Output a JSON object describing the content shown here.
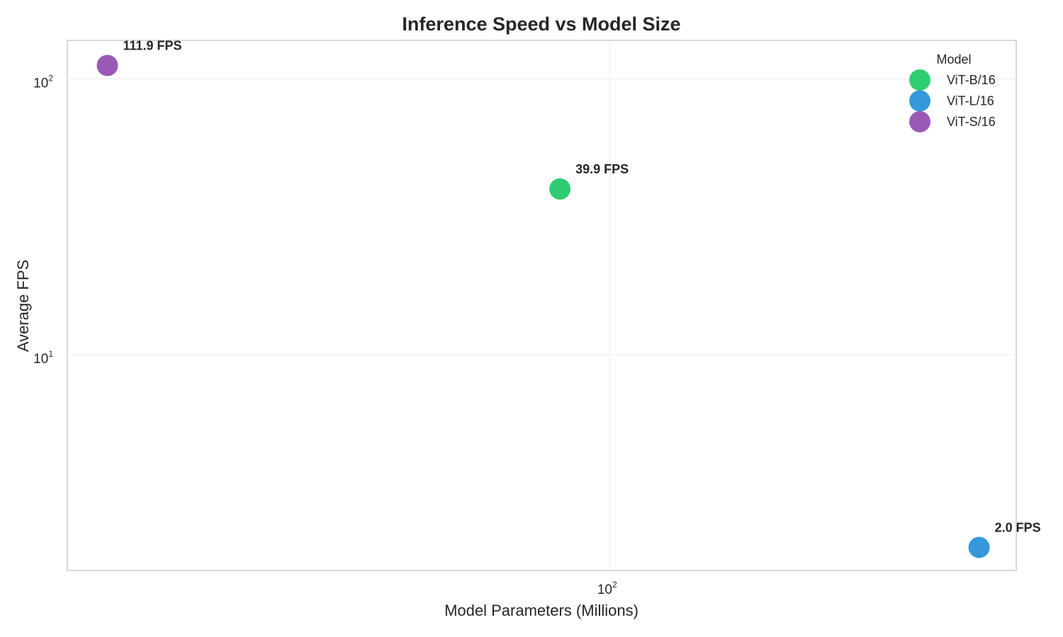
{
  "chart_data": {
    "type": "scatter",
    "title": "Inference Speed vs Model Size",
    "xlabel": "Model Parameters (Millions)",
    "ylabel": "Average FPS",
    "xscale": "log",
    "yscale": "log",
    "xlim": [
      19.5,
      340
    ],
    "ylim": [
      1.65,
      138
    ],
    "grid": true,
    "x_ticks": [
      {
        "base": "10",
        "exp": "2",
        "value": 100
      }
    ],
    "y_ticks": [
      {
        "base": "10",
        "exp": "1",
        "value": 10
      },
      {
        "base": "10",
        "exp": "2",
        "value": 100
      }
    ],
    "legend": {
      "title": "Model",
      "placement": "top-right"
    },
    "series": [
      {
        "name": "ViT-B/16",
        "color": "#2ecc71",
        "x": [
          86
        ],
        "y": [
          39.9
        ],
        "labels": [
          "39.9 FPS"
        ]
      },
      {
        "name": "ViT-L/16",
        "color": "#3498db",
        "x": [
          304
        ],
        "y": [
          2.0
        ],
        "labels": [
          "2.0 FPS"
        ]
      },
      {
        "name": "ViT-S/16",
        "color": "#9b59b6",
        "x": [
          22
        ],
        "y": [
          111.9
        ],
        "labels": [
          "111.9 FPS"
        ]
      }
    ]
  }
}
